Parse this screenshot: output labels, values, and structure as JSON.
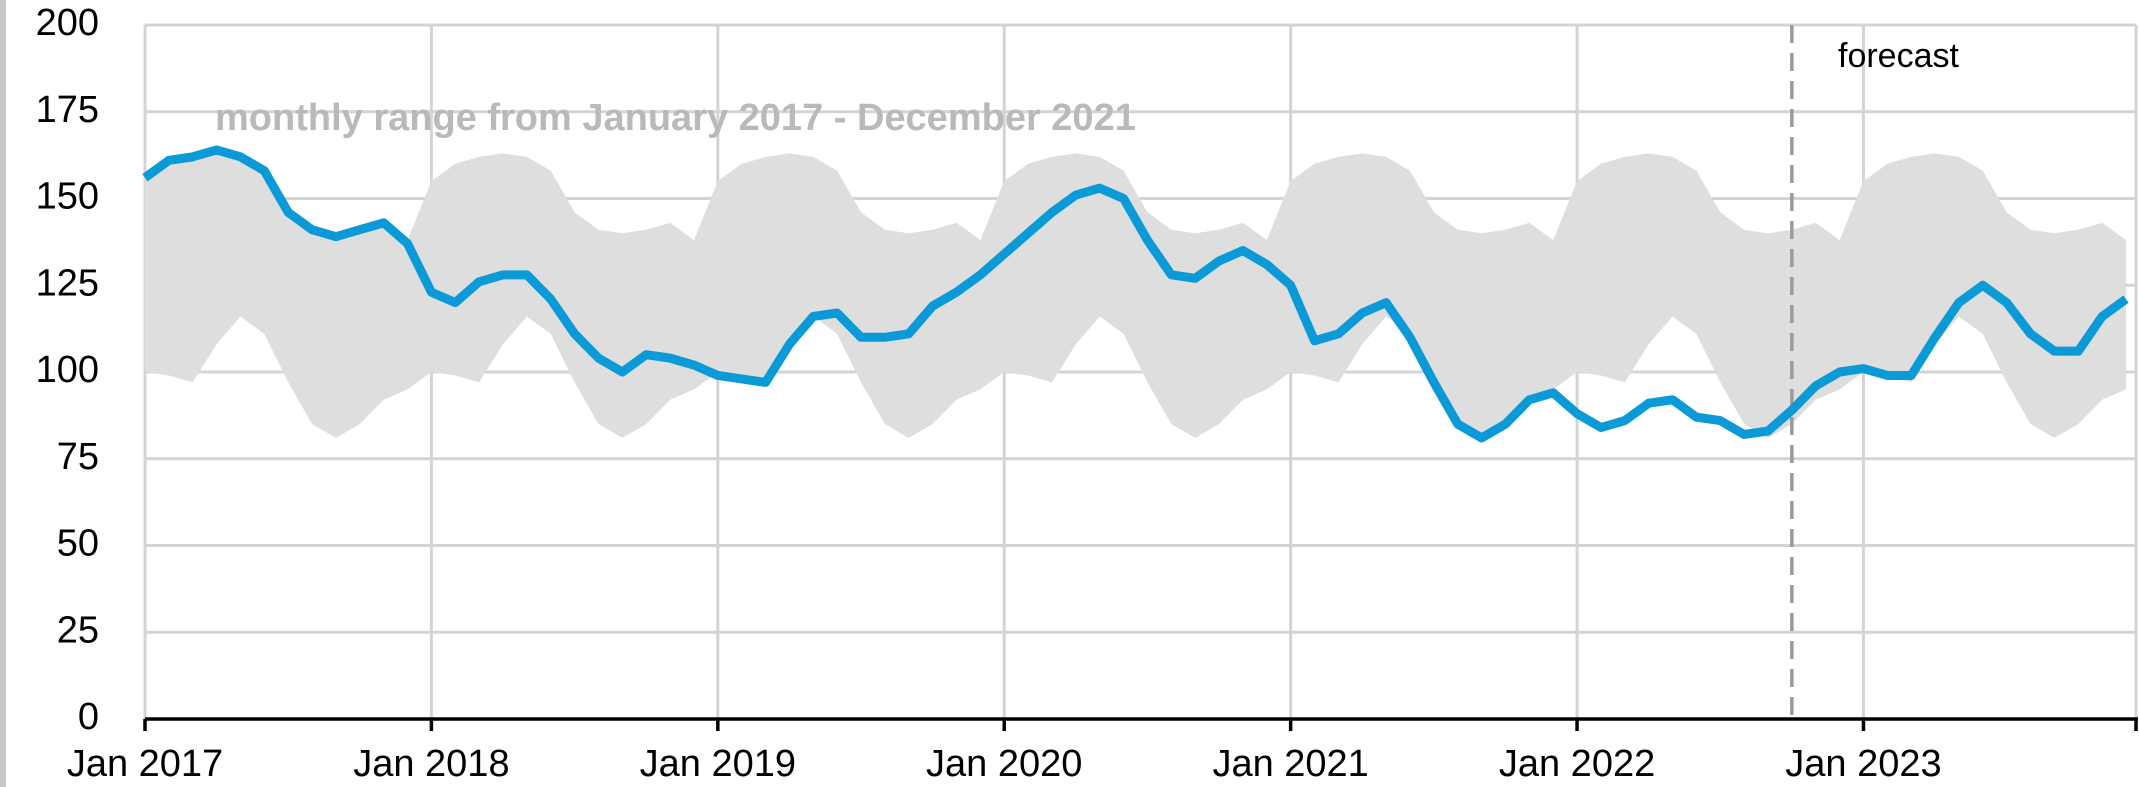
{
  "chart_data": {
    "type": "line",
    "x": [
      "2017-01",
      "2017-02",
      "2017-03",
      "2017-04",
      "2017-05",
      "2017-06",
      "2017-07",
      "2017-08",
      "2017-09",
      "2017-10",
      "2017-11",
      "2017-12",
      "2018-01",
      "2018-02",
      "2018-03",
      "2018-04",
      "2018-05",
      "2018-06",
      "2018-07",
      "2018-08",
      "2018-09",
      "2018-10",
      "2018-11",
      "2018-12",
      "2019-01",
      "2019-02",
      "2019-03",
      "2019-04",
      "2019-05",
      "2019-06",
      "2019-07",
      "2019-08",
      "2019-09",
      "2019-10",
      "2019-11",
      "2019-12",
      "2020-01",
      "2020-02",
      "2020-03",
      "2020-04",
      "2020-05",
      "2020-06",
      "2020-07",
      "2020-08",
      "2020-09",
      "2020-10",
      "2020-11",
      "2020-12",
      "2021-01",
      "2021-02",
      "2021-03",
      "2021-04",
      "2021-05",
      "2021-06",
      "2021-07",
      "2021-08",
      "2021-09",
      "2021-10",
      "2021-11",
      "2021-12",
      "2022-01",
      "2022-02",
      "2022-03",
      "2022-04",
      "2022-05",
      "2022-06",
      "2022-07",
      "2022-08",
      "2022-09",
      "2022-10",
      "2022-11",
      "2022-12",
      "2023-01",
      "2023-02",
      "2023-03",
      "2023-04",
      "2023-05",
      "2023-06",
      "2023-07",
      "2023-08",
      "2023-09",
      "2023-10",
      "2023-11",
      "2023-12"
    ],
    "series": [
      {
        "color": "#0b9ad8",
        "values": [
          156,
          161,
          162,
          164,
          162,
          158,
          146,
          141,
          139,
          141,
          143,
          137,
          123,
          120,
          126,
          128,
          128,
          121,
          111,
          104,
          100,
          105,
          104,
          102,
          99,
          98,
          97,
          108,
          116,
          117,
          110,
          110,
          111,
          119,
          123,
          128,
          134,
          140,
          146,
          151,
          153,
          150,
          138,
          128,
          127,
          132,
          135,
          131,
          125,
          109,
          111,
          117,
          120,
          110,
          97,
          85,
          81,
          85,
          92,
          94,
          88,
          84,
          86,
          91,
          92,
          87,
          86,
          82,
          83,
          89,
          96,
          100,
          101,
          99,
          99,
          110,
          120,
          125,
          120,
          111,
          106,
          106,
          116,
          121
        ]
      }
    ],
    "band": {
      "color": "#dedede",
      "low": [
        100,
        99,
        97,
        108,
        116,
        111,
        97,
        85,
        81,
        85,
        92,
        95,
        100,
        99,
        97,
        108,
        116,
        111,
        97,
        85,
        81,
        85,
        92,
        95,
        100,
        99,
        97,
        108,
        116,
        111,
        97,
        85,
        81,
        85,
        92,
        95,
        100,
        99,
        97,
        108,
        116,
        111,
        97,
        85,
        81,
        85,
        92,
        95,
        100,
        99,
        97,
        108,
        116,
        111,
        97,
        85,
        81,
        85,
        92,
        95,
        100,
        99,
        97,
        108,
        116,
        111,
        97,
        85,
        81,
        85,
        92,
        95,
        100,
        99,
        97,
        108,
        116,
        111,
        97,
        85,
        81,
        85,
        92,
        95
      ],
      "high": [
        155,
        160,
        162,
        163,
        162,
        158,
        146,
        141,
        140,
        141,
        143,
        138,
        155,
        160,
        162,
        163,
        162,
        158,
        146,
        141,
        140,
        141,
        143,
        138,
        155,
        160,
        162,
        163,
        162,
        158,
        146,
        141,
        140,
        141,
        143,
        138,
        155,
        160,
        162,
        163,
        162,
        158,
        146,
        141,
        140,
        141,
        143,
        138,
        155,
        160,
        162,
        163,
        162,
        158,
        146,
        141,
        140,
        141,
        143,
        138,
        155,
        160,
        162,
        163,
        162,
        158,
        146,
        141,
        140,
        141,
        143,
        138,
        155,
        160,
        162,
        163,
        162,
        158,
        146,
        141,
        140,
        141,
        143,
        138
      ]
    },
    "band_label": "monthly range from January 2017 - December 2021",
    "forecast_start": "2022-10",
    "forecast_label": "forecast",
    "xlim": [
      "2017-01",
      "2023-12"
    ],
    "xticks": [
      {
        "value": "2017-01",
        "label": "Jan 2017"
      },
      {
        "value": "2018-01",
        "label": "Jan 2018"
      },
      {
        "value": "2019-01",
        "label": "Jan 2019"
      },
      {
        "value": "2020-01",
        "label": "Jan 2020"
      },
      {
        "value": "2021-01",
        "label": "Jan 2021"
      },
      {
        "value": "2022-01",
        "label": "Jan 2022"
      },
      {
        "value": "2023-01",
        "label": "Jan 2023"
      }
    ],
    "ylim": [
      0,
      200
    ],
    "yticks": [
      0,
      25,
      50,
      75,
      100,
      125,
      150,
      175,
      200
    ],
    "grid": true
  }
}
